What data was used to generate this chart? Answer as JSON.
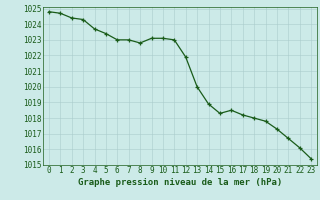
{
  "x": [
    0,
    1,
    2,
    3,
    4,
    5,
    6,
    7,
    8,
    9,
    10,
    11,
    12,
    13,
    14,
    15,
    16,
    17,
    18,
    19,
    20,
    21,
    22,
    23
  ],
  "y": [
    1024.8,
    1024.7,
    1024.4,
    1024.3,
    1023.7,
    1023.4,
    1023.0,
    1023.0,
    1022.8,
    1023.1,
    1023.1,
    1023.0,
    1021.9,
    1020.0,
    1018.9,
    1018.3,
    1018.5,
    1018.2,
    1018.0,
    1017.8,
    1017.3,
    1016.7,
    1016.1,
    1015.4
  ],
  "line_color": "#1a5c1a",
  "marker_color": "#1a5c1a",
  "bg_color": "#cceae8",
  "grid_color": "#aacccc",
  "axis_label_color": "#1a5c1a",
  "tick_color": "#1a5c1a",
  "xlabel": "Graphe pression niveau de la mer (hPa)",
  "ylim": [
    1015,
    1025
  ],
  "xlim": [
    -0.5,
    23.5
  ],
  "yticks": [
    1015,
    1016,
    1017,
    1018,
    1019,
    1020,
    1021,
    1022,
    1023,
    1024,
    1025
  ],
  "xticks": [
    0,
    1,
    2,
    3,
    4,
    5,
    6,
    7,
    8,
    9,
    10,
    11,
    12,
    13,
    14,
    15,
    16,
    17,
    18,
    19,
    20,
    21,
    22,
    23
  ],
  "axis_fontsize": 6.5,
  "tick_fontsize": 5.5
}
